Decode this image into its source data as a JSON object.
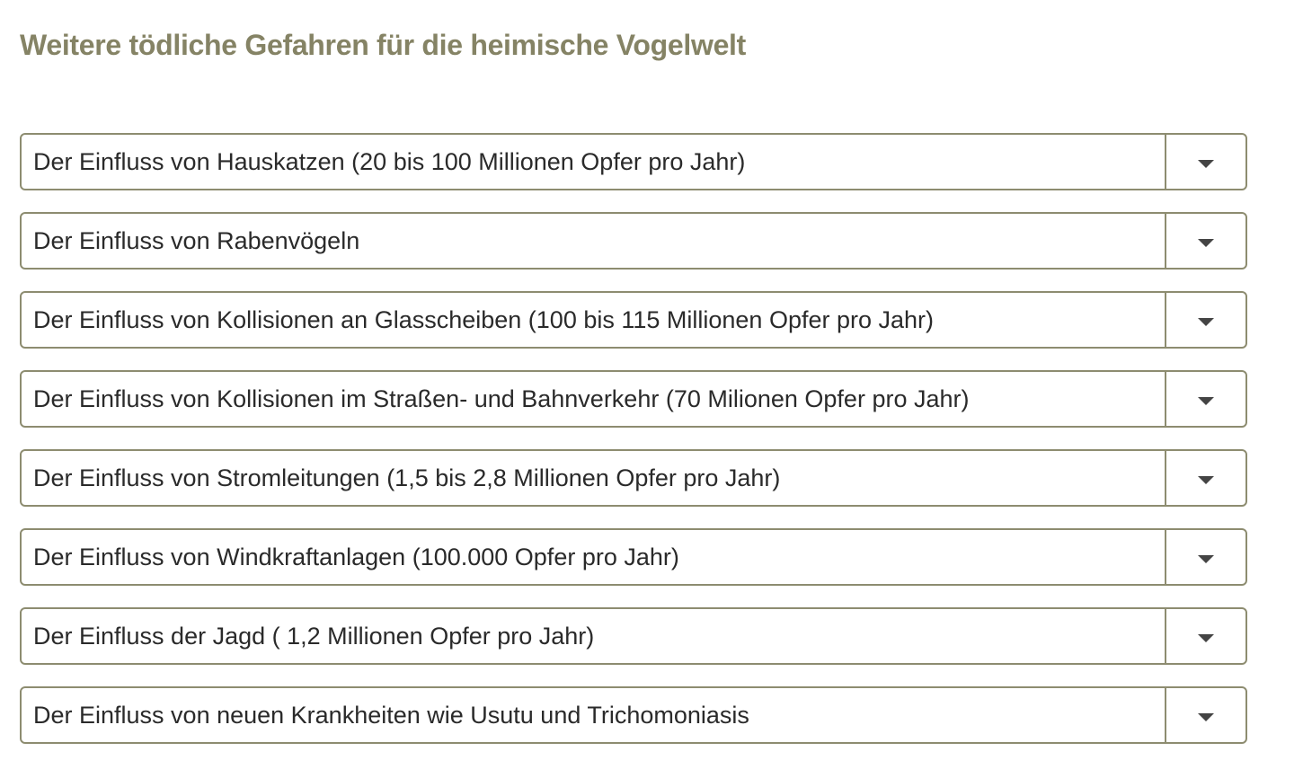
{
  "page": {
    "title": "Weitere tödliche Gefahren für die heimische Vogelwelt"
  },
  "colors": {
    "title": "#858365",
    "border": "#8d8c70",
    "text": "#2a2a2a",
    "caret": "#444444"
  },
  "accordion": {
    "items": [
      {
        "label": "Der Einfluss von Hauskatzen (20 bis 100 Millionen Opfer pro Jahr)",
        "icon": "chevron-down-icon",
        "expanded": false
      },
      {
        "label": "Der Einfluss von Rabenvögeln",
        "icon": "chevron-down-icon",
        "expanded": false
      },
      {
        "label": "Der Einfluss von Kollisionen an Glasscheiben (100 bis 115 Millionen Opfer pro Jahr)",
        "icon": "chevron-down-icon",
        "expanded": false
      },
      {
        "label": "Der Einfluss von Kollisionen im Straßen- und Bahnverkehr (70 Milionen Opfer pro Jahr)",
        "icon": "chevron-down-icon",
        "expanded": false
      },
      {
        "label": "Der Einfluss von Stromleitungen (1,5 bis 2,8 Millionen Opfer pro Jahr)",
        "icon": "chevron-down-icon",
        "expanded": false
      },
      {
        "label": "Der Einfluss von Windkraftanlagen (100.000 Opfer pro Jahr)",
        "icon": "chevron-down-icon",
        "expanded": false
      },
      {
        "label": "Der Einfluss der Jagd ( 1,2 Millionen Opfer pro Jahr)",
        "icon": "chevron-down-icon",
        "expanded": false
      },
      {
        "label": "Der Einfluss von neuen Krankheiten wie Usutu und Trichomoniasis",
        "icon": "chevron-down-icon",
        "expanded": false
      }
    ]
  }
}
